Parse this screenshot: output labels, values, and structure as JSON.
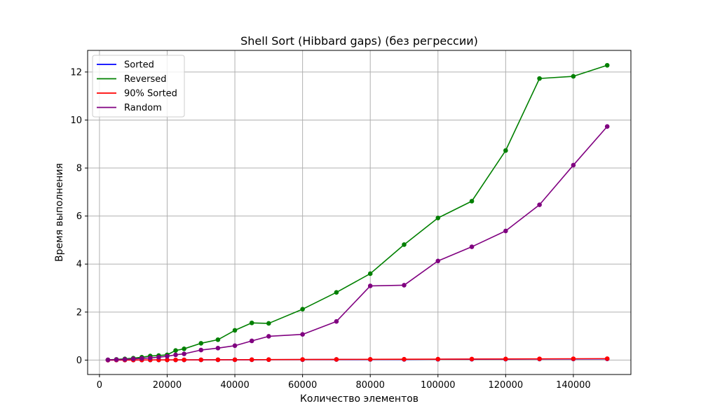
{
  "chart_data": {
    "type": "line",
    "title": "Shell Sort (Hibbard gaps) (без регрессии)",
    "xlabel": "Количество элементов",
    "ylabel": "Время выполнения",
    "xlim": [
      -3500,
      157000
    ],
    "ylim": [
      -0.6,
      12.9
    ],
    "xticks": [
      0,
      20000,
      40000,
      60000,
      80000,
      100000,
      120000,
      140000
    ],
    "xtick_labels": [
      "0",
      "20000",
      "40000",
      "60000",
      "80000",
      "100000",
      "120000",
      "140000"
    ],
    "yticks": [
      0,
      2,
      4,
      6,
      8,
      10,
      12
    ],
    "ytick_labels": [
      "0",
      "2",
      "4",
      "6",
      "8",
      "10",
      "12"
    ],
    "grid": true,
    "legend_position": "top-left",
    "x": [
      2500,
      5000,
      7500,
      10000,
      12500,
      15000,
      17500,
      20000,
      22500,
      25000,
      30000,
      35000,
      40000,
      45000,
      50000,
      60000,
      70000,
      80000,
      90000,
      100000,
      110000,
      120000,
      130000,
      140000,
      150000
    ],
    "series": [
      {
        "name": "Sorted",
        "color": "#0000ff",
        "values": [
          0.001,
          0.002,
          0.003,
          0.004,
          0.004,
          0.005,
          0.006,
          0.007,
          0.008,
          0.009,
          0.01,
          0.012,
          0.014,
          0.015,
          0.017,
          0.02,
          0.024,
          0.027,
          0.03,
          0.034,
          0.037,
          0.041,
          0.044,
          0.047,
          0.051
        ]
      },
      {
        "name": "Reversed",
        "color": "#008000",
        "values": [
          0.01,
          0.03,
          0.05,
          0.08,
          0.12,
          0.17,
          0.19,
          0.22,
          0.4,
          0.47,
          0.7,
          0.85,
          1.24,
          1.55,
          1.53,
          2.12,
          2.82,
          3.6,
          4.81,
          5.92,
          6.62,
          8.73,
          11.73,
          11.82,
          12.28
        ]
      },
      {
        "name": "90% Sorted",
        "color": "#ff0000",
        "values": [
          0.001,
          0.002,
          0.003,
          0.004,
          0.005,
          0.006,
          0.007,
          0.008,
          0.009,
          0.01,
          0.012,
          0.014,
          0.016,
          0.018,
          0.02,
          0.024,
          0.028,
          0.032,
          0.036,
          0.04,
          0.044,
          0.048,
          0.052,
          0.056,
          0.06
        ]
      },
      {
        "name": "Random",
        "color": "#800080",
        "values": [
          0.01,
          0.02,
          0.03,
          0.05,
          0.07,
          0.09,
          0.12,
          0.16,
          0.22,
          0.26,
          0.42,
          0.5,
          0.6,
          0.8,
          0.99,
          1.07,
          1.61,
          3.09,
          3.12,
          4.13,
          4.72,
          5.38,
          6.47,
          8.12,
          9.73
        ]
      }
    ]
  }
}
